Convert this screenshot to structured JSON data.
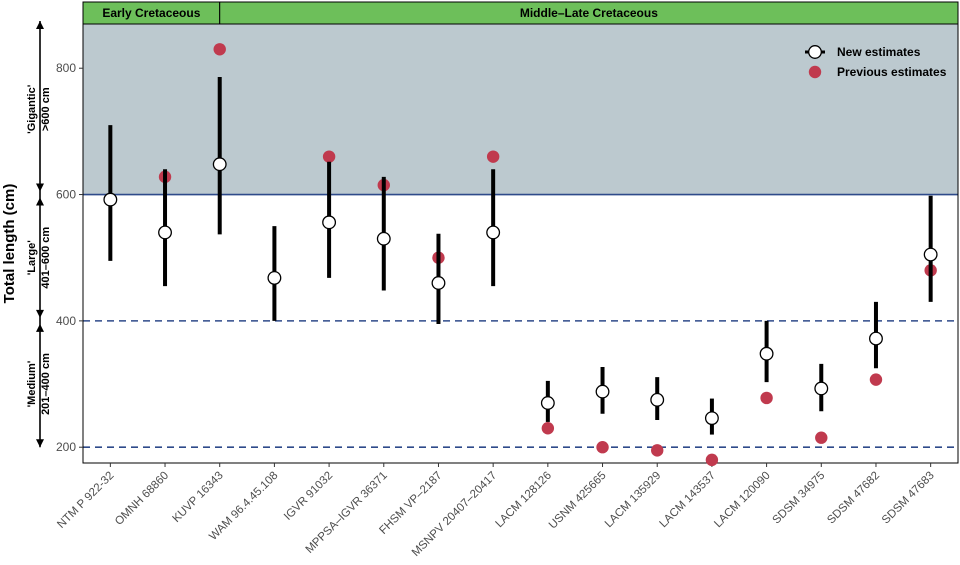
{
  "chart_data": {
    "type": "scatter",
    "periods": [
      {
        "label": "Early Cretaceous",
        "color": "#6dbf5a"
      },
      {
        "label": "Middle–Late Cretaceous",
        "color": "#6dbf5a"
      }
    ],
    "categories": [
      "NTM P 922-32",
      "OMNH 68860",
      "KUVP 16343",
      "WAM 96.4.45.108",
      "IGVR 91032",
      "MPPSA–IGVR 36371",
      "FHSM VP–2187",
      "MSNPV 20407–20417",
      "LACM 128126",
      "USNM 425665",
      "LACM 135929",
      "LACM 143537",
      "LACM 120090",
      "SDSM 34975",
      "SDSM 47682",
      "SDSM 47683"
    ],
    "series": [
      {
        "name": "New estimates",
        "color": "#000000",
        "values": [
          592,
          540,
          648,
          468,
          556,
          530,
          460,
          540,
          270,
          288,
          275,
          246,
          348,
          293,
          372,
          505
        ],
        "low": [
          495,
          455,
          537,
          400,
          468,
          448,
          395,
          455,
          240,
          253,
          243,
          220,
          303,
          257,
          325,
          430
        ],
        "high": [
          710,
          640,
          786,
          550,
          652,
          628,
          538,
          640,
          305,
          327,
          311,
          277,
          400,
          332,
          430,
          598
        ]
      },
      {
        "name": "Previous estimates",
        "color": "#c03a4e",
        "values": [
          null,
          628,
          830,
          null,
          660,
          615,
          500,
          660,
          230,
          200,
          195,
          180,
          278,
          215,
          307,
          480
        ]
      }
    ],
    "ylabel": "Total length (cm)",
    "ylim": [
      175,
      870
    ],
    "yticks": [
      200,
      400,
      600,
      800
    ],
    "reference_lines": [
      {
        "value": 600,
        "style": "solid",
        "color": "#2e4a8a"
      },
      {
        "value": 400,
        "style": "dashed",
        "color": "#2e4a8a"
      },
      {
        "value": 200,
        "style": "dashed",
        "color": "#2e4a8a"
      }
    ],
    "shaded_region": {
      "from": 600,
      "to": 870,
      "color": "#bcc9cf"
    },
    "size_classes": [
      {
        "line1": "'Gigantic'",
        "line2": ">600 cm",
        "from": 600,
        "to": 870
      },
      {
        "line1": "'Large'",
        "line2": "401–600 cm",
        "from": 400,
        "to": 600
      },
      {
        "line1": "'Medium'",
        "line2": "201–400 cm",
        "from": 200,
        "to": 400
      }
    ],
    "legend_position": "top-right",
    "grid": false
  }
}
